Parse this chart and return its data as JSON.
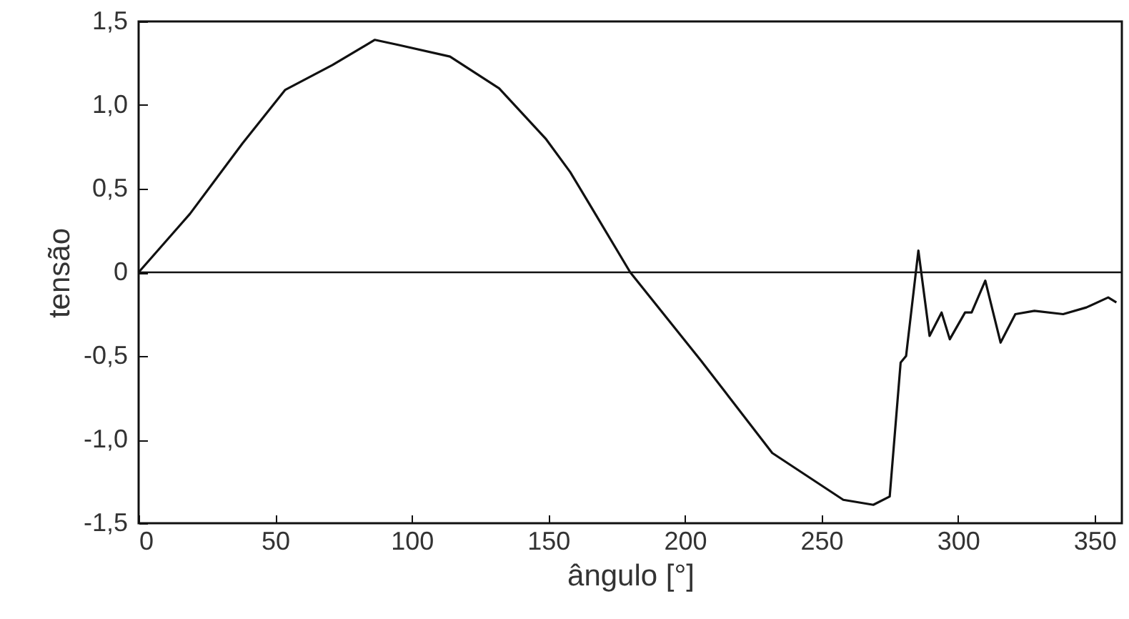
{
  "chart_data": {
    "type": "line",
    "xlabel": "ângulo [°]",
    "ylabel": "tensão",
    "x": [
      0,
      18.8,
      38,
      53.6,
      71,
      86.5,
      95,
      114,
      132,
      149,
      158,
      165,
      180,
      206,
      232,
      258,
      269,
      275,
      279,
      281,
      285.5,
      289.6,
      294,
      297,
      302.6,
      305,
      310,
      315.6,
      321,
      328,
      338.5,
      347,
      355,
      358
    ],
    "series": [
      {
        "color": "#111111",
        "values": [
          0,
          0.35,
          0.77,
          1.09,
          1.24,
          1.39,
          1.36,
          1.29,
          1.1,
          0.8,
          0.6,
          0.41,
          0,
          -0.53,
          -1.08,
          -1.36,
          -1.39,
          -1.34,
          -0.54,
          -0.5,
          0.13,
          -0.38,
          -0.24,
          -0.4,
          -0.24,
          -0.24,
          -0.05,
          -0.42,
          -0.25,
          -0.23,
          -0.25,
          -0.21,
          -0.15,
          -0.18
        ]
      }
    ],
    "xlim": [
      0,
      360
    ],
    "xticks": [
      0,
      50,
      100,
      150,
      200,
      250,
      300,
      350
    ],
    "ylim": [
      -1.5,
      1.5
    ],
    "yticks": [
      {
        "value": -1.5,
        "label": "-1,5"
      },
      {
        "value": -1,
        "label": "-1,0"
      },
      {
        "value": -0.5,
        "label": "-0,5"
      },
      {
        "value": 0,
        "label": "0"
      },
      {
        "value": 0.5,
        "label": "0,5"
      },
      {
        "value": 1,
        "label": "1,0"
      },
      {
        "value": 1.5,
        "label": "1,5"
      }
    ],
    "ref_lines": [
      {
        "axis": "y",
        "value": 0,
        "color": "#111111"
      }
    ],
    "grid": false,
    "marker": "none",
    "line_style": "solid"
  }
}
